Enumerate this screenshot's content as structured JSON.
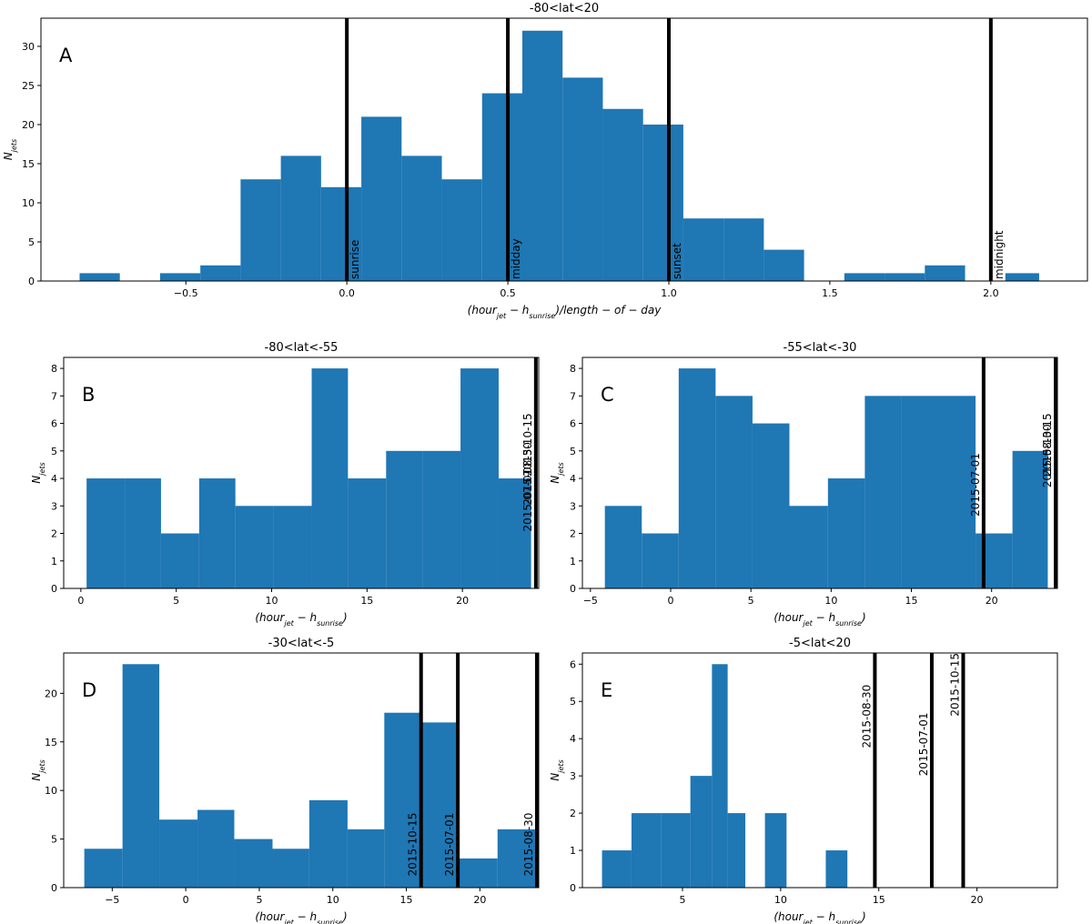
{
  "colors": {
    "bar": "#1f77b4",
    "vline": "#000000",
    "axis": "#000000"
  },
  "chart_data": [
    {
      "id": "A",
      "type": "bar",
      "panel_label": "A",
      "title": "-80<lat<20",
      "xlabel": "(hour_jet − h_sunrise)/length − of − day",
      "xlabel_parts": [
        [
          "(hour",
          ""
        ],
        [
          "jet",
          "sub"
        ],
        [
          " − h",
          ""
        ],
        [
          "sunrise",
          "sub"
        ],
        [
          ")/length − of − day",
          ""
        ]
      ],
      "ylabel": "N_jets",
      "xlim": [
        -0.95,
        2.3
      ],
      "ylim": [
        0,
        33.6
      ],
      "xticks": [
        -0.5,
        0.0,
        0.5,
        1.0,
        1.5,
        2.0
      ],
      "xtick_labels": [
        "−0.5",
        "0.0",
        "0.5",
        "1.0",
        "1.5",
        "2.0"
      ],
      "yticks": [
        0,
        5,
        10,
        15,
        20,
        25,
        30
      ],
      "ytick_labels": [
        "0",
        "5",
        "10",
        "15",
        "20",
        "25",
        "30"
      ],
      "bins": [
        [
          -0.83,
          -0.705,
          1
        ],
        [
          -0.705,
          -0.58,
          0
        ],
        [
          -0.58,
          -0.455,
          1
        ],
        [
          -0.455,
          -0.33,
          2
        ],
        [
          -0.33,
          -0.205,
          13
        ],
        [
          -0.205,
          -0.08,
          16
        ],
        [
          -0.08,
          0.045,
          12
        ],
        [
          0.045,
          0.17,
          21
        ],
        [
          0.17,
          0.295,
          16
        ],
        [
          0.295,
          0.42,
          13
        ],
        [
          0.42,
          0.545,
          24
        ],
        [
          0.545,
          0.67,
          32
        ],
        [
          0.67,
          0.795,
          26
        ],
        [
          0.795,
          0.92,
          22
        ],
        [
          0.92,
          1.045,
          20
        ],
        [
          1.045,
          1.17,
          8
        ],
        [
          1.17,
          1.295,
          8
        ],
        [
          1.295,
          1.42,
          4
        ],
        [
          1.42,
          1.545,
          0
        ],
        [
          1.545,
          1.67,
          1
        ],
        [
          1.67,
          1.795,
          1
        ],
        [
          1.795,
          1.92,
          2
        ],
        [
          1.92,
          2.045,
          0
        ],
        [
          2.045,
          2.15,
          1
        ]
      ],
      "vlines": [
        {
          "x": 0.0,
          "label": "sunrise",
          "label_side": "right",
          "label_y": 0
        },
        {
          "x": 0.5,
          "label": "midday",
          "label_side": "right",
          "label_y": 0
        },
        {
          "x": 1.0,
          "label": "sunset",
          "label_side": "right",
          "label_y": 0
        },
        {
          "x": 2.0,
          "label": "midnight",
          "label_side": "right",
          "label_y": 0
        }
      ]
    },
    {
      "id": "B",
      "type": "bar",
      "panel_label": "B",
      "title": "-80<lat<-55",
      "xlabel": "(hour_jet − h_sunrise)",
      "xlabel_parts": [
        [
          "(hour",
          ""
        ],
        [
          "jet",
          "sub"
        ],
        [
          " − h",
          ""
        ],
        [
          "sunrise",
          "sub"
        ],
        [
          ")",
          ""
        ]
      ],
      "ylabel": "N_jets",
      "xlim": [
        -0.9,
        24.0
      ],
      "ylim": [
        0,
        8.4
      ],
      "xticks": [
        0,
        5,
        10,
        15,
        20
      ],
      "xtick_labels": [
        "0",
        "5",
        "10",
        "15",
        "20"
      ],
      "yticks": [
        0,
        1,
        2,
        3,
        4,
        5,
        6,
        7,
        8
      ],
      "ytick_labels": [
        "0",
        "1",
        "2",
        "3",
        "4",
        "5",
        "6",
        "7",
        "8"
      ],
      "bins": [
        [
          0.3,
          2.3,
          4
        ],
        [
          2.3,
          4.2,
          4
        ],
        [
          4.2,
          6.2,
          2
        ],
        [
          6.2,
          8.1,
          4
        ],
        [
          8.1,
          10.1,
          3
        ],
        [
          10.1,
          12.1,
          3
        ],
        [
          12.1,
          14.0,
          8
        ],
        [
          14.0,
          16.0,
          4
        ],
        [
          16.0,
          17.9,
          5
        ],
        [
          17.9,
          19.9,
          5
        ],
        [
          19.9,
          21.9,
          8
        ],
        [
          21.9,
          23.6,
          4
        ]
      ],
      "vlines": [
        {
          "x": 23.85,
          "label": "2015-10-15",
          "label_side": "left",
          "label_y": 4.0
        },
        {
          "x": 23.85,
          "label": "2015-08-30",
          "label_side": "left",
          "label_y": 2.95
        },
        {
          "x": 23.85,
          "label": "2015-07-01",
          "label_side": "left",
          "label_y": 2.0
        }
      ]
    },
    {
      "id": "C",
      "type": "bar",
      "panel_label": "C",
      "title": "-55<lat<-30",
      "xlabel": "(hour_jet − h_sunrise)",
      "xlabel_parts": [
        [
          "(hour",
          ""
        ],
        [
          "jet",
          "sub"
        ],
        [
          " − h",
          ""
        ],
        [
          "sunrise",
          "sub"
        ],
        [
          ")",
          ""
        ]
      ],
      "ylabel": "N_jets",
      "xlim": [
        -5.5,
        24.1
      ],
      "ylim": [
        0,
        8.4
      ],
      "xticks": [
        -5,
        0,
        5,
        10,
        15,
        20
      ],
      "xtick_labels": [
        "−5",
        "0",
        "5",
        "10",
        "15",
        "20"
      ],
      "yticks": [
        0,
        1,
        2,
        3,
        4,
        5,
        6,
        7,
        8
      ],
      "ytick_labels": [
        "0",
        "1",
        "2",
        "3",
        "4",
        "5",
        "6",
        "7",
        "8"
      ],
      "bins": [
        [
          -4.1,
          -1.8,
          3
        ],
        [
          -1.8,
          0.5,
          2
        ],
        [
          0.5,
          2.8,
          8
        ],
        [
          2.8,
          5.1,
          7
        ],
        [
          5.1,
          7.4,
          6
        ],
        [
          7.4,
          9.8,
          3
        ],
        [
          9.8,
          12.1,
          4
        ],
        [
          12.1,
          14.4,
          7
        ],
        [
          14.4,
          16.7,
          7
        ],
        [
          16.7,
          19.0,
          7
        ],
        [
          19.0,
          21.3,
          2
        ],
        [
          21.3,
          23.5,
          5
        ]
      ],
      "vlines": [
        {
          "x": 19.5,
          "label": "2015-07-01",
          "label_side": "left",
          "label_y": 2.55
        },
        {
          "x": 24.0,
          "label": "2015-10-15",
          "label_side": "left",
          "label_y": 4.0
        },
        {
          "x": 24.0,
          "label": "2015-08-30",
          "label_side": "left",
          "label_y": 3.6
        }
      ]
    },
    {
      "id": "D",
      "type": "bar",
      "panel_label": "D",
      "title": "-30<lat<-5",
      "xlabel": "(hour_jet − h_sunrise)",
      "xlabel_parts": [
        [
          "(hour",
          ""
        ],
        [
          "jet",
          "sub"
        ],
        [
          " − h",
          ""
        ],
        [
          "sunrise",
          "sub"
        ],
        [
          ")",
          ""
        ]
      ],
      "ylabel": "N_jets",
      "xlim": [
        -8.3,
        24.0
      ],
      "ylim": [
        0,
        24.15
      ],
      "xticks": [
        -5,
        0,
        5,
        10,
        15,
        20
      ],
      "xtick_labels": [
        "−5",
        "0",
        "5",
        "10",
        "15",
        "20"
      ],
      "yticks": [
        0,
        5,
        10,
        15,
        20
      ],
      "ytick_labels": [
        "0",
        "5",
        "10",
        "15",
        "20"
      ],
      "bins": [
        [
          -6.9,
          -4.3,
          4
        ],
        [
          -4.3,
          -1.8,
          23
        ],
        [
          -1.8,
          0.8,
          7
        ],
        [
          0.8,
          3.3,
          8
        ],
        [
          3.3,
          5.9,
          5
        ],
        [
          5.9,
          8.4,
          4
        ],
        [
          8.4,
          11.0,
          9
        ],
        [
          11.0,
          13.5,
          6
        ],
        [
          13.5,
          16.1,
          18
        ],
        [
          16.1,
          18.6,
          17
        ],
        [
          18.6,
          21.2,
          3
        ],
        [
          21.2,
          23.8,
          6
        ]
      ],
      "vlines": [
        {
          "x": 16.0,
          "label": "2015-10-15",
          "label_side": "left",
          "label_y": 1.0
        },
        {
          "x": 18.5,
          "label": "2015-07-01",
          "label_side": "left",
          "label_y": 1.0
        },
        {
          "x": 23.9,
          "label": "2015-08-30",
          "label_side": "left",
          "label_y": 1.0
        }
      ]
    },
    {
      "id": "E",
      "type": "bar",
      "panel_label": "E",
      "title": "-5<lat<20",
      "xlabel": "(hour_jet − h_sunrise)",
      "xlabel_parts": [
        [
          "(hour",
          ""
        ],
        [
          "jet",
          "sub"
        ],
        [
          " − h",
          ""
        ],
        [
          "sunrise",
          "sub"
        ],
        [
          ")",
          ""
        ]
      ],
      "ylabel": "N_jets",
      "xlim": [
        -0.1,
        24.1
      ],
      "ylim": [
        0,
        6.3
      ],
      "xticks": [
        5,
        10,
        15,
        20
      ],
      "xtick_labels": [
        "5",
        "10",
        "15",
        "20"
      ],
      "yticks": [
        0,
        1,
        2,
        3,
        4,
        5,
        6
      ],
      "ytick_labels": [
        "0",
        "1",
        "2",
        "3",
        "4",
        "5",
        "6"
      ],
      "bins": [
        [
          0.9,
          2.4,
          1
        ],
        [
          2.4,
          3.9,
          2
        ],
        [
          3.9,
          5.4,
          2
        ],
        [
          5.4,
          6.5,
          3
        ],
        [
          6.5,
          7.3,
          6
        ],
        [
          7.3,
          8.2,
          2
        ],
        [
          8.2,
          9.2,
          0
        ],
        [
          9.2,
          10.3,
          2
        ],
        [
          10.3,
          12.3,
          0
        ],
        [
          12.3,
          13.4,
          1
        ]
      ],
      "vlines": [
        {
          "x": 14.8,
          "label": "2015-08-30",
          "label_side": "left",
          "label_y": 3.7
        },
        {
          "x": 17.7,
          "label": "2015-07-01",
          "label_side": "left",
          "label_y": 2.95
        },
        {
          "x": 19.3,
          "label": "2015-10-15",
          "label_side": "left",
          "label_y": 4.55
        }
      ]
    }
  ]
}
